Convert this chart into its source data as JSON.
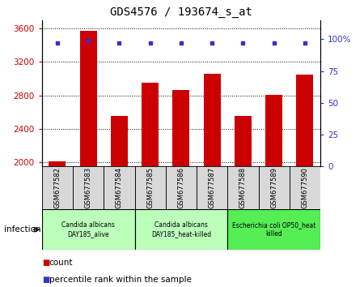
{
  "title": "GDS4576 / 193674_s_at",
  "samples": [
    "GSM677582",
    "GSM677583",
    "GSM677584",
    "GSM677585",
    "GSM677586",
    "GSM677587",
    "GSM677588",
    "GSM677589",
    "GSM677590"
  ],
  "counts": [
    2010,
    3570,
    2555,
    2955,
    2865,
    3060,
    2555,
    2810,
    3045
  ],
  "percentile_ranks": [
    97,
    99,
    97,
    97,
    97,
    97,
    97,
    97,
    97
  ],
  "ylim_left": [
    1950,
    3700
  ],
  "ylim_right": [
    0,
    115
  ],
  "yticks_left": [
    2000,
    2400,
    2800,
    3200,
    3600
  ],
  "yticks_right": [
    0,
    25,
    50,
    75,
    100
  ],
  "ytick_labels_right": [
    "0",
    "25",
    "50",
    "75",
    "100%"
  ],
  "bar_color": "#cc0000",
  "dot_color": "#3333cc",
  "groups": [
    {
      "label": "Candida albicans\nDAY185_alive",
      "start": 0,
      "end": 3,
      "color": "#bbffbb"
    },
    {
      "label": "Candida albicans\nDAY185_heat-killed",
      "start": 3,
      "end": 6,
      "color": "#bbffbb"
    },
    {
      "label": "Escherichia coli OP50_heat\nkilled",
      "start": 6,
      "end": 9,
      "color": "#55ee55"
    }
  ],
  "group_label": "infection",
  "legend_count_label": "count",
  "legend_pct_label": "percentile rank within the sample",
  "plot_bg_color": "#ffffff",
  "sample_box_color": "#d8d8d8",
  "left_tick_color": "#cc0000",
  "right_tick_color": "#3333cc",
  "title_fontsize": 10,
  "axis_fontsize": 7.5,
  "legend_fontsize": 7.5,
  "sample_fontsize": 6,
  "group_fontsize": 5.5
}
